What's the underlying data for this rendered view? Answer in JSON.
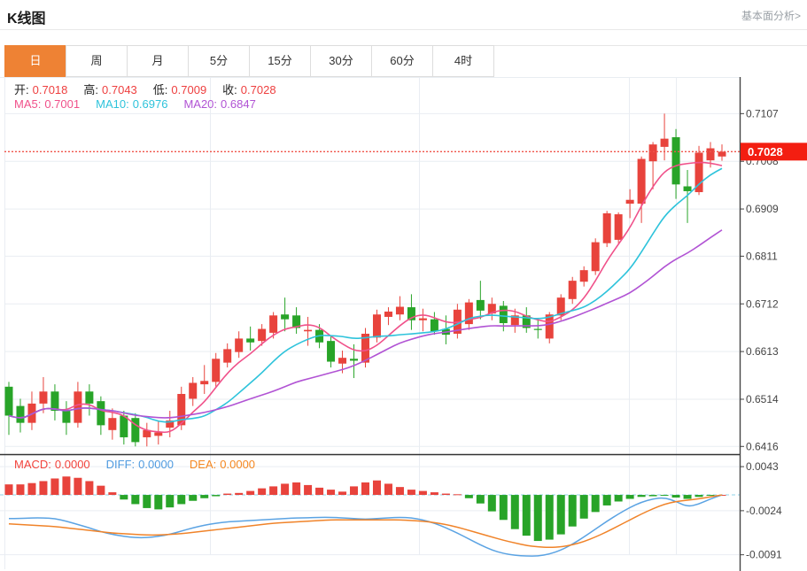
{
  "header": {
    "title": "K线图",
    "link_label": "基本面分析>"
  },
  "tabs": {
    "active_index": 0,
    "items": [
      "日",
      "周",
      "月",
      "5分",
      "15分",
      "30分",
      "60分",
      "4时"
    ]
  },
  "ohlc_legend": {
    "items": [
      {
        "label": "开:",
        "value": "0.7018"
      },
      {
        "label": "高:",
        "value": "0.7043"
      },
      {
        "label": "低:",
        "value": "0.7009"
      },
      {
        "label": "收:",
        "value": "0.7028"
      }
    ]
  },
  "ma_legend": {
    "items": [
      {
        "label": "MA5:",
        "value": "0.7001",
        "color": "#f0518a"
      },
      {
        "label": "MA10:",
        "value": "0.6976",
        "color": "#2ec3db"
      },
      {
        "label": "MA20:",
        "value": "0.6847",
        "color": "#b153d4"
      }
    ]
  },
  "macd_legend": {
    "items": [
      {
        "label": "MACD:",
        "value": "0.0000",
        "color": "#f2433c"
      },
      {
        "label": "DIFF:",
        "value": "0.0000",
        "color": "#4f9be0"
      },
      {
        "label": "DEA:",
        "value": "0.0000",
        "color": "#f5871f"
      }
    ]
  },
  "colors": {
    "up": "#e8433c",
    "down": "#28a428",
    "ma5": "#f0518a",
    "ma10": "#2ec3db",
    "ma20": "#b153d4",
    "diff_line": "#5ba3e3",
    "dea_line": "#f08329",
    "current_price_line": "#f0544a",
    "current_price_tag_bg": "#f31e11",
    "tab_active_bg": "#ee8234",
    "grid": "#e9edf2",
    "axis": "#444444",
    "zero_dash": "#8fd3e8",
    "ohlc_value": "#ee3f3f"
  },
  "chart_data": {
    "type": "candlestick",
    "title": "K线图 (daily K-line with MACD sub-chart)",
    "color_convention": "red = up candle / positive MACD, green = down candle / negative MACD",
    "legend_position": "top-left overlay",
    "main_pane": {
      "y_ticks": [
        0.7107,
        0.7008,
        0.6909,
        0.6811,
        0.6712,
        0.6613,
        0.6514,
        0.6416
      ],
      "ylim": [
        0.64,
        0.7183
      ],
      "current_price": 0.7028,
      "ma_periods": [
        5,
        10,
        20
      ],
      "candles_ohlc": [
        [
          0.654,
          0.655,
          0.644,
          0.648
        ],
        [
          0.65,
          0.6515,
          0.6445,
          0.6465
        ],
        [
          0.6465,
          0.653,
          0.645,
          0.6505
        ],
        [
          0.6505,
          0.656,
          0.6485,
          0.653
        ],
        [
          0.653,
          0.6545,
          0.647,
          0.649
        ],
        [
          0.649,
          0.651,
          0.644,
          0.6465
        ],
        [
          0.6465,
          0.655,
          0.6455,
          0.653
        ],
        [
          0.653,
          0.6545,
          0.648,
          0.6505
        ],
        [
          0.651,
          0.652,
          0.644,
          0.646
        ],
        [
          0.645,
          0.6495,
          0.643,
          0.6475
        ],
        [
          0.648,
          0.649,
          0.642,
          0.6435
        ],
        [
          0.6475,
          0.6485,
          0.6416,
          0.6425
        ],
        [
          0.6435,
          0.6465,
          0.6416,
          0.645
        ],
        [
          0.6438,
          0.647,
          0.642,
          0.6445
        ],
        [
          0.6455,
          0.649,
          0.6435,
          0.647
        ],
        [
          0.646,
          0.654,
          0.645,
          0.6525
        ],
        [
          0.6515,
          0.656,
          0.65,
          0.6548
        ],
        [
          0.6545,
          0.6585,
          0.6525,
          0.6552
        ],
        [
          0.655,
          0.661,
          0.654,
          0.6598
        ],
        [
          0.659,
          0.663,
          0.658,
          0.6618
        ],
        [
          0.6612,
          0.6655,
          0.66,
          0.664
        ],
        [
          0.664,
          0.6665,
          0.6615,
          0.6632
        ],
        [
          0.6635,
          0.667,
          0.6625,
          0.666
        ],
        [
          0.6652,
          0.6695,
          0.664,
          0.6688
        ],
        [
          0.669,
          0.6725,
          0.6655,
          0.668
        ],
        [
          0.6688,
          0.6705,
          0.665,
          0.6662
        ],
        [
          0.6655,
          0.6685,
          0.6625,
          0.6658
        ],
        [
          0.6658,
          0.667,
          0.662,
          0.6632
        ],
        [
          0.6635,
          0.6645,
          0.658,
          0.6592
        ],
        [
          0.6588,
          0.6615,
          0.6568,
          0.66
        ],
        [
          0.6598,
          0.6628,
          0.6558,
          0.6594
        ],
        [
          0.659,
          0.6662,
          0.658,
          0.665
        ],
        [
          0.6642,
          0.67,
          0.6632,
          0.669
        ],
        [
          0.6685,
          0.6705,
          0.6668,
          0.6696
        ],
        [
          0.669,
          0.6728,
          0.6678,
          0.6706
        ],
        [
          0.6705,
          0.6732,
          0.6658,
          0.6678
        ],
        [
          0.6678,
          0.6702,
          0.6655,
          0.6682
        ],
        [
          0.668,
          0.6695,
          0.6648,
          0.6655
        ],
        [
          0.666,
          0.6688,
          0.6628,
          0.6648
        ],
        [
          0.665,
          0.6712,
          0.664,
          0.67
        ],
        [
          0.667,
          0.6722,
          0.6658,
          0.6715
        ],
        [
          0.672,
          0.676,
          0.668,
          0.6698
        ],
        [
          0.6692,
          0.6725,
          0.6678,
          0.6712
        ],
        [
          0.6708,
          0.6718,
          0.6655,
          0.6672
        ],
        [
          0.6668,
          0.6702,
          0.6652,
          0.6688
        ],
        [
          0.6688,
          0.6705,
          0.6652,
          0.6662
        ],
        [
          0.666,
          0.668,
          0.664,
          0.6658
        ],
        [
          0.664,
          0.6695,
          0.663,
          0.669
        ],
        [
          0.6688,
          0.6732,
          0.6678,
          0.6725
        ],
        [
          0.6722,
          0.6768,
          0.6712,
          0.676
        ],
        [
          0.6758,
          0.679,
          0.6748,
          0.6782
        ],
        [
          0.678,
          0.6848,
          0.6772,
          0.684
        ],
        [
          0.6838,
          0.6905,
          0.683,
          0.69
        ],
        [
          0.6845,
          0.6902,
          0.6838,
          0.6898
        ],
        [
          0.692,
          0.695,
          0.689,
          0.6928
        ],
        [
          0.692,
          0.7018,
          0.688,
          0.7013
        ],
        [
          0.7008,
          0.7048,
          0.695,
          0.7043
        ],
        [
          0.7038,
          0.7107,
          0.701,
          0.7055
        ],
        [
          0.7058,
          0.7075,
          0.693,
          0.696
        ],
        [
          0.6956,
          0.699,
          0.688,
          0.6946
        ],
        [
          0.6944,
          0.704,
          0.6938,
          0.7026
        ],
        [
          0.701,
          0.7048,
          0.6995,
          0.7035
        ],
        [
          0.7018,
          0.7043,
          0.7009,
          0.7028
        ]
      ]
    },
    "macd_pane": {
      "y_ticks": [
        0.0043,
        -0.0024,
        -0.0091
      ],
      "ylim": [
        -0.0113,
        0.0062
      ],
      "histogram": [
        0.0016,
        0.0016,
        0.0018,
        0.0021,
        0.0025,
        0.0028,
        0.0026,
        0.0021,
        0.0014,
        0.0004,
        -0.0007,
        -0.0014,
        -0.002,
        -0.0022,
        -0.0019,
        -0.0014,
        -0.0009,
        -0.0005,
        -0.0002,
        0.0002,
        0.0003,
        0.0006,
        0.001,
        0.0013,
        0.0017,
        0.0019,
        0.0015,
        0.0011,
        0.0008,
        0.0005,
        0.0013,
        0.0019,
        0.0022,
        0.0017,
        0.0012,
        0.0008,
        0.0006,
        0.0004,
        0.0002,
        0.0001,
        -0.0005,
        -0.0013,
        -0.0025,
        -0.0038,
        -0.0052,
        -0.0062,
        -0.007,
        -0.0068,
        -0.006,
        -0.0048,
        -0.0036,
        -0.0026,
        -0.0016,
        -0.001,
        -0.0006,
        -0.0003,
        -0.0002,
        -0.0001,
        -0.0004,
        -0.0006,
        -0.0003,
        -0.0001,
        0.0
      ],
      "diff": [
        -0.0036,
        -0.0036,
        -0.0035,
        -0.0035,
        -0.0036,
        -0.004,
        -0.0045,
        -0.005,
        -0.0056,
        -0.006,
        -0.0063,
        -0.0065,
        -0.0065,
        -0.0063,
        -0.006,
        -0.0055,
        -0.005,
        -0.0046,
        -0.0043,
        -0.0041,
        -0.004,
        -0.0039,
        -0.0038,
        -0.0037,
        -0.0036,
        -0.0035,
        -0.0035,
        -0.0034,
        -0.0034,
        -0.0035,
        -0.0036,
        -0.0037,
        -0.0036,
        -0.0035,
        -0.0034,
        -0.0035,
        -0.0038,
        -0.0043,
        -0.005,
        -0.0058,
        -0.0067,
        -0.0076,
        -0.0084,
        -0.0089,
        -0.0092,
        -0.0093,
        -0.0093,
        -0.009,
        -0.0084,
        -0.0075,
        -0.0064,
        -0.0052,
        -0.004,
        -0.0029,
        -0.0019,
        -0.0011,
        -0.0006,
        -0.0004,
        -0.001,
        -0.0018,
        -0.0014,
        -0.0006,
        0.0
      ],
      "dea": [
        -0.0044,
        -0.0045,
        -0.0046,
        -0.0047,
        -0.0048,
        -0.005,
        -0.0052,
        -0.0054,
        -0.0056,
        -0.0058,
        -0.0059,
        -0.006,
        -0.0061,
        -0.0061,
        -0.006,
        -0.0059,
        -0.0057,
        -0.0055,
        -0.0053,
        -0.0051,
        -0.0049,
        -0.0047,
        -0.0045,
        -0.0043,
        -0.0042,
        -0.0041,
        -0.004,
        -0.0039,
        -0.0038,
        -0.0038,
        -0.0038,
        -0.0038,
        -0.0038,
        -0.0038,
        -0.0038,
        -0.0039,
        -0.004,
        -0.0042,
        -0.0045,
        -0.0049,
        -0.0054,
        -0.0059,
        -0.0064,
        -0.0069,
        -0.0073,
        -0.0077,
        -0.0079,
        -0.008,
        -0.0079,
        -0.0076,
        -0.0071,
        -0.0064,
        -0.0056,
        -0.0047,
        -0.0038,
        -0.0029,
        -0.0021,
        -0.0014,
        -0.001,
        -0.0008,
        -0.0006,
        -0.0003,
        0.0
      ]
    }
  }
}
